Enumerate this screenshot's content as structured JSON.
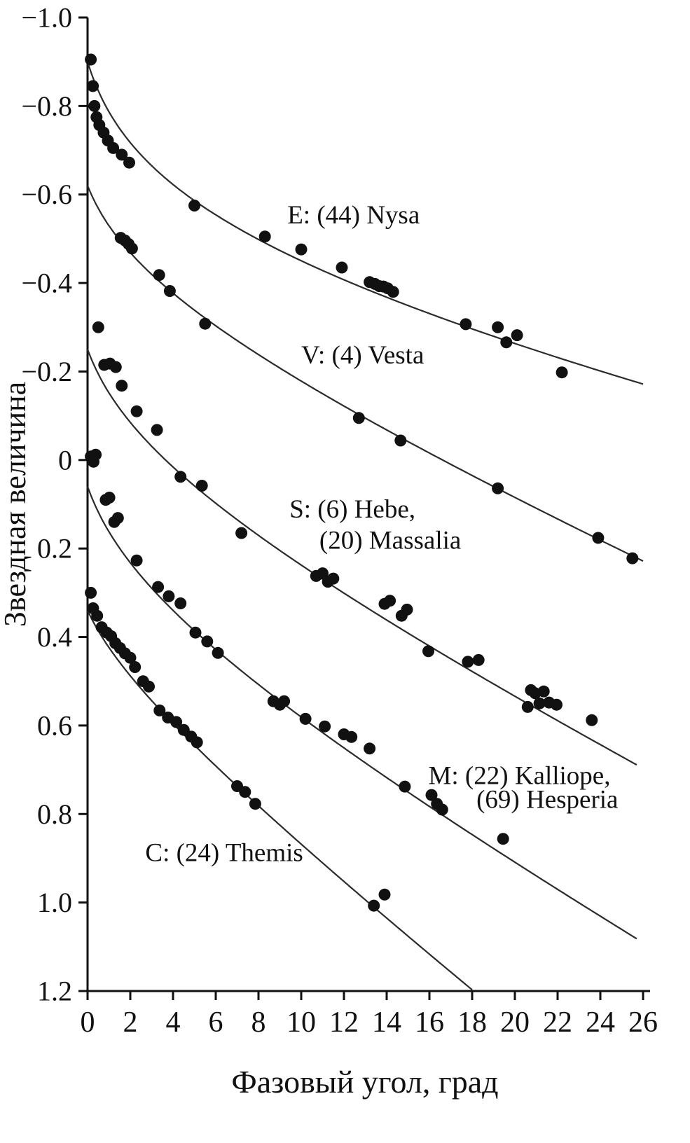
{
  "chart_data": {
    "type": "scatter",
    "title": "",
    "xlabel": "Фазовый угол, град",
    "ylabel": "Звездная величина",
    "xlim": [
      0,
      26
    ],
    "ylim": [
      -1.0,
      1.2
    ],
    "y_axis_inverted_magnitude": true,
    "grid": false,
    "point_color": "#111111",
    "curve_color": "#2b2b2b",
    "curve_model": "mag = a + b*x + c*ln(1+x)",
    "x_ticks": [
      {
        "v": 0,
        "label": "0"
      },
      {
        "v": 2,
        "label": "2"
      },
      {
        "v": 4,
        "label": "4"
      },
      {
        "v": 6,
        "label": "6"
      },
      {
        "v": 8,
        "label": "8"
      },
      {
        "v": 10,
        "label": "10"
      },
      {
        "v": 12,
        "label": "12"
      },
      {
        "v": 14,
        "label": "14"
      },
      {
        "v": 16,
        "label": "16"
      },
      {
        "v": 18,
        "label": "18"
      },
      {
        "v": 20,
        "label": "20"
      },
      {
        "v": 22,
        "label": "22"
      },
      {
        "v": 24,
        "label": "24"
      },
      {
        "v": 26,
        "label": "26"
      }
    ],
    "y_ticks": [
      {
        "v": -1.0,
        "label": "−1.0"
      },
      {
        "v": -0.8,
        "label": "−0.8"
      },
      {
        "v": -0.6,
        "label": "−0.6"
      },
      {
        "v": -0.4,
        "label": "−0.4"
      },
      {
        "v": -0.2,
        "label": "−0.2"
      },
      {
        "v": 0.0,
        "label": "0"
      },
      {
        "v": 0.2,
        "label": "0.2"
      },
      {
        "v": 0.4,
        "label": "0.4"
      },
      {
        "v": 0.6,
        "label": "0.6"
      },
      {
        "v": 0.8,
        "label": "0.8"
      },
      {
        "v": 1.0,
        "label": "1.0"
      },
      {
        "v": 1.2,
        "label": "1.2"
      }
    ],
    "series": [
      {
        "id": "E",
        "name": "E: (44) Nysa",
        "label": {
          "lines": [
            {
              "text": "E: (44) Nysa",
              "x": 9.35,
              "y": -0.553
            }
          ]
        },
        "curve": {
          "a": -0.9,
          "b": 0.009,
          "c": 0.15,
          "x0": 0,
          "x1": 26
        },
        "points": [
          [
            0.15,
            -0.905
          ],
          [
            0.25,
            -0.845
          ],
          [
            0.32,
            -0.8
          ],
          [
            0.42,
            -0.775
          ],
          [
            0.55,
            -0.757
          ],
          [
            0.75,
            -0.74
          ],
          [
            0.95,
            -0.722
          ],
          [
            1.2,
            -0.705
          ],
          [
            1.6,
            -0.69
          ],
          [
            1.95,
            -0.672
          ],
          [
            5.0,
            -0.575
          ],
          [
            8.3,
            -0.505
          ],
          [
            10.0,
            -0.476
          ],
          [
            11.9,
            -0.435
          ],
          [
            13.2,
            -0.402
          ],
          [
            13.45,
            -0.398
          ],
          [
            13.65,
            -0.393
          ],
          [
            13.85,
            -0.392
          ],
          [
            14.05,
            -0.388
          ],
          [
            14.3,
            -0.38
          ],
          [
            17.7,
            -0.307
          ],
          [
            19.2,
            -0.3
          ],
          [
            19.6,
            -0.266
          ],
          [
            20.1,
            -0.282
          ],
          [
            22.2,
            -0.198
          ]
        ]
      },
      {
        "id": "V",
        "name": "V: (4) Vesta",
        "label": {
          "lines": [
            {
              "text": "V: (4) Vesta",
              "x": 10.0,
              "y": -0.236
            }
          ]
        },
        "curve": {
          "a": -0.62,
          "b": 0.0197,
          "c": 0.102,
          "x0": 0,
          "x1": 26
        },
        "points": [
          [
            1.55,
            -0.502
          ],
          [
            1.75,
            -0.496
          ],
          [
            1.92,
            -0.488
          ],
          [
            2.08,
            -0.478
          ],
          [
            3.35,
            -0.418
          ],
          [
            3.85,
            -0.382
          ],
          [
            5.5,
            -0.308
          ],
          [
            12.7,
            -0.095
          ],
          [
            14.65,
            -0.044
          ],
          [
            19.2,
            0.064
          ],
          [
            23.9,
            0.176
          ],
          [
            25.5,
            0.222
          ]
        ]
      },
      {
        "id": "S",
        "name": "S: (6) Hebe, (20) Massalia",
        "label": {
          "lines": [
            {
              "text": "S: (6) Hebe,",
              "x": 9.45,
              "y": 0.112
            },
            {
              "text": "(20) Massalia",
              "x": 10.85,
              "y": 0.182
            }
          ]
        },
        "curve": {
          "a": -0.25,
          "b": 0.0226,
          "c": 0.109,
          "x0": 0,
          "x1": 25.7
        },
        "points": [
          [
            0.5,
            -0.3
          ],
          [
            0.78,
            -0.215
          ],
          [
            1.05,
            -0.218
          ],
          [
            1.32,
            -0.21
          ],
          [
            1.6,
            -0.168
          ],
          [
            2.3,
            -0.11
          ],
          [
            3.25,
            -0.068
          ],
          [
            4.35,
            0.038
          ],
          [
            5.35,
            0.058
          ],
          [
            7.2,
            0.165
          ],
          [
            10.7,
            0.262
          ],
          [
            11.0,
            0.256
          ],
          [
            11.25,
            0.275
          ],
          [
            11.5,
            0.268
          ],
          [
            13.9,
            0.325
          ],
          [
            14.15,
            0.318
          ],
          [
            14.7,
            0.352
          ],
          [
            14.95,
            0.338
          ],
          [
            15.95,
            0.432
          ],
          [
            17.8,
            0.456
          ],
          [
            18.3,
            0.452
          ],
          [
            20.6,
            0.558
          ],
          [
            20.75,
            0.52
          ],
          [
            20.95,
            0.527
          ],
          [
            21.15,
            0.55
          ],
          [
            21.35,
            0.523
          ],
          [
            21.6,
            0.548
          ],
          [
            21.95,
            0.553
          ],
          [
            23.6,
            0.588
          ]
        ]
      },
      {
        "id": "M",
        "name": "M: (22) Kalliope, (69) Hesperia",
        "label": {
          "lines": [
            {
              "text": "M: (22) Kalliope,",
              "x": 15.95,
              "y": 0.714
            },
            {
              "text": "(69) Hesperia",
              "x": 18.2,
              "y": 0.768
            }
          ]
        },
        "curve": {
          "a": 0.06,
          "b": 0.0257,
          "c": 0.11,
          "x0": 0,
          "x1": 25.7
        },
        "points": [
          [
            0.15,
            -0.008
          ],
          [
            0.28,
            0.004
          ],
          [
            0.38,
            -0.012
          ],
          [
            0.85,
            0.09
          ],
          [
            1.02,
            0.085
          ],
          [
            1.25,
            0.14
          ],
          [
            1.42,
            0.131
          ],
          [
            2.3,
            0.227
          ],
          [
            3.3,
            0.287
          ],
          [
            3.8,
            0.308
          ],
          [
            4.35,
            0.324
          ],
          [
            5.05,
            0.39
          ],
          [
            5.6,
            0.41
          ],
          [
            6.1,
            0.436
          ],
          [
            8.7,
            0.545
          ],
          [
            9.0,
            0.553
          ],
          [
            9.2,
            0.545
          ],
          [
            10.2,
            0.585
          ],
          [
            11.1,
            0.602
          ],
          [
            12.0,
            0.62
          ],
          [
            12.35,
            0.626
          ],
          [
            13.2,
            0.652
          ],
          [
            14.85,
            0.738
          ],
          [
            16.1,
            0.757
          ],
          [
            16.35,
            0.777
          ],
          [
            16.6,
            0.79
          ],
          [
            19.45,
            0.856
          ]
        ]
      },
      {
        "id": "C",
        "name": "C: (24) Themis",
        "label": {
          "lines": [
            {
              "text": "C: (24) Themis",
              "x": 2.7,
              "y": 0.888
            }
          ]
        },
        "curve": {
          "a": 0.34,
          "b": 0.0365,
          "c": 0.068,
          "x0": 0,
          "x1": 18.05
        },
        "points": [
          [
            0.15,
            0.3
          ],
          [
            0.26,
            0.335
          ],
          [
            0.45,
            0.352
          ],
          [
            0.66,
            0.378
          ],
          [
            0.9,
            0.39
          ],
          [
            1.1,
            0.398
          ],
          [
            1.3,
            0.414
          ],
          [
            1.52,
            0.425
          ],
          [
            1.75,
            0.437
          ],
          [
            2.0,
            0.447
          ],
          [
            2.22,
            0.468
          ],
          [
            2.6,
            0.5
          ],
          [
            2.87,
            0.512
          ],
          [
            3.37,
            0.566
          ],
          [
            3.76,
            0.582
          ],
          [
            4.15,
            0.592
          ],
          [
            4.5,
            0.61
          ],
          [
            4.85,
            0.625
          ],
          [
            5.12,
            0.638
          ],
          [
            7.0,
            0.737
          ],
          [
            7.37,
            0.75
          ],
          [
            7.85,
            0.777
          ],
          [
            13.4,
            1.007
          ],
          [
            13.9,
            0.982
          ]
        ]
      }
    ]
  }
}
